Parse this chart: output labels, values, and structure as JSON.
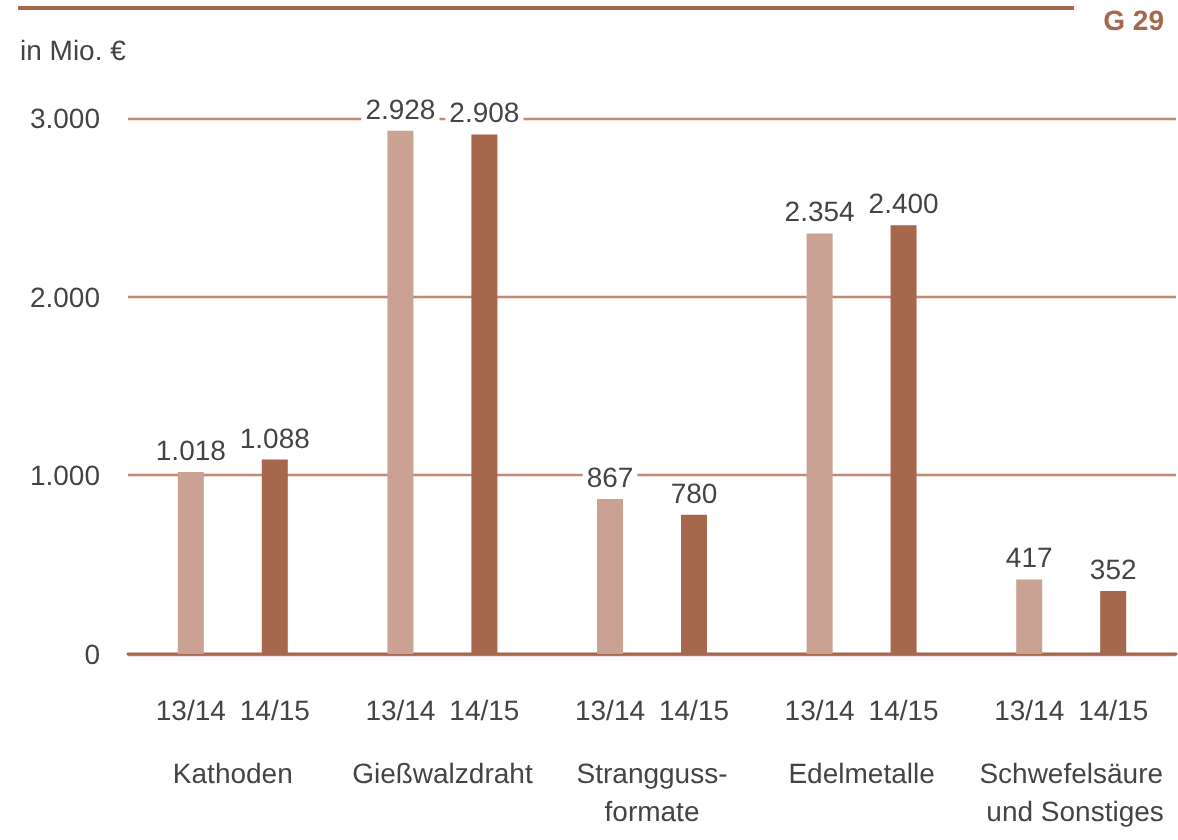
{
  "chart_data": {
    "type": "bar",
    "ylabel": "in Mio. €",
    "annotations": [
      "G 29"
    ],
    "categories": [
      "Kathoden",
      "Gießwalzdraht",
      "Strangguss-\nformate",
      "Edelmetalle",
      "Schwefelsäure und Sonstiges"
    ],
    "series": [
      {
        "name": "13/14",
        "color": "#c9a293",
        "values": [
          1018,
          2928,
          867,
          2354,
          417
        ],
        "value_labels": [
          "1.018",
          "2.928",
          "867",
          "2.354",
          "417"
        ]
      },
      {
        "name": "14/15",
        "color": "#a6674d",
        "values": [
          1088,
          2908,
          780,
          2400,
          352
        ],
        "value_labels": [
          "1.088",
          "2.908",
          "780",
          "2.400",
          "352"
        ]
      }
    ],
    "ylim": [
      0,
      3000
    ],
    "yticks": [
      0,
      {
        "value": 1000,
        "label": "1.000"
      },
      {
        "value": 2000,
        "label": "2.000"
      },
      {
        "value": 3000,
        "label": "3.000"
      }
    ],
    "grid": "y"
  }
}
